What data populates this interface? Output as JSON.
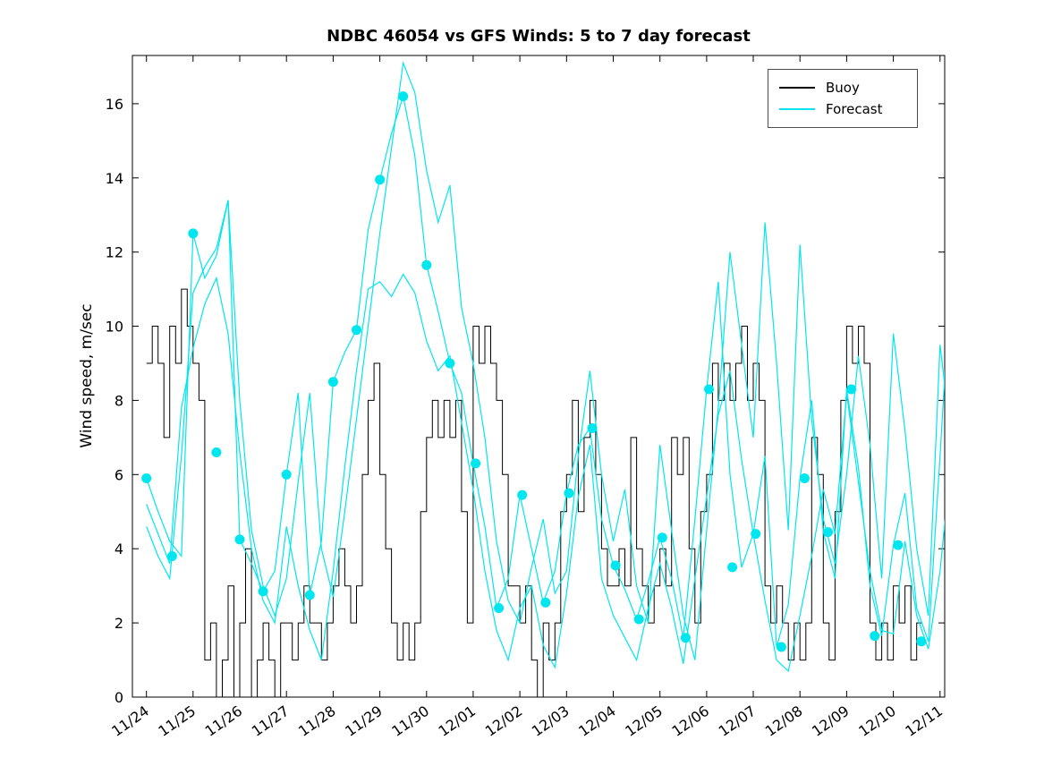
{
  "chart_data": {
    "type": "line",
    "title": "NDBC 46054 vs GFS Winds: 5 to 7 day forecast",
    "xlabel": "",
    "ylabel": "Wind speed, m/sec",
    "x_unit": "days since 11/24",
    "x_tick_labels": [
      "11/24",
      "11/25",
      "11/26",
      "11/27",
      "11/28",
      "11/29",
      "11/30",
      "12/01",
      "12/02",
      "12/03",
      "12/04",
      "12/05",
      "12/06",
      "12/07",
      "12/08",
      "12/09",
      "12/10",
      "12/11"
    ],
    "y_ticks": [
      0,
      2,
      4,
      6,
      8,
      10,
      12,
      14,
      16
    ],
    "xlim": [
      -0.3,
      17.1
    ],
    "ylim": [
      0,
      17.3
    ],
    "grid": false,
    "colors": {
      "buoy": "#000000",
      "forecast": "#00e6ee"
    },
    "legend": {
      "position": "top-right",
      "entries": [
        {
          "label": "Buoy",
          "color": "#000000"
        },
        {
          "label": "Forecast",
          "color": "#00e6ee"
        }
      ]
    },
    "series": [
      {
        "name": "buoy",
        "style": "stairs",
        "color": "#000000",
        "width": 1,
        "x_start": 0,
        "dx": 0.125,
        "values": [
          9,
          10,
          9,
          7,
          10,
          9,
          11,
          10,
          9,
          8,
          1,
          2,
          0,
          1,
          3,
          0,
          2,
          4,
          0,
          1,
          2,
          1,
          0,
          2,
          2,
          1,
          2,
          3,
          2,
          2,
          1,
          2,
          3,
          4,
          3,
          2,
          3,
          6,
          8,
          9,
          6,
          4,
          2,
          1,
          2,
          1,
          2,
          5,
          7,
          8,
          7,
          8,
          7,
          8,
          5,
          2,
          10,
          9,
          10,
          9,
          8,
          6,
          3,
          3,
          2,
          3,
          1,
          0,
          2,
          1,
          2,
          5,
          6,
          8,
          5,
          7,
          8,
          6,
          4,
          3,
          3,
          4,
          3,
          7,
          4,
          3,
          2,
          3,
          4,
          3,
          7,
          6,
          7,
          4,
          2,
          5,
          6,
          9,
          8,
          9,
          8,
          9,
          10,
          8,
          9,
          8,
          3,
          2,
          3,
          2,
          1,
          2,
          1,
          2,
          7,
          6,
          2,
          1,
          5,
          8,
          10,
          9,
          10,
          9,
          2,
          1,
          2,
          1,
          3,
          2,
          3,
          1,
          2,
          2
        ]
      },
      {
        "name": "forecast-1",
        "style": "line",
        "color": "#00e6ee",
        "width": 1.2,
        "x_start": 0,
        "dx": 0.25,
        "values": [
          5.9,
          5.0,
          4.2,
          3.8,
          12.5,
          11.3,
          11.9,
          13.4,
          4.25,
          3.6,
          2.85,
          3.4,
          6.0,
          8.2,
          2.75,
          4.2,
          8.5,
          9.3,
          9.9,
          12.6,
          13.95,
          15.2,
          16.2,
          14.6,
          11.65,
          10.4,
          9.0,
          8.2,
          6.3,
          4.6,
          2.4,
          3.2,
          5.45,
          4.0,
          2.55,
          3.4,
          5.5,
          6.8,
          7.25,
          4.8,
          3.55,
          2.9,
          2.1,
          3.1,
          4.3,
          3.2,
          1.6,
          4.8,
          8.3,
          11.2,
          6.0,
          3.5,
          4.4,
          6.5,
          1.35,
          2.5,
          5.9,
          8.0,
          4.45,
          3.2,
          8.3,
          6.2,
          3.0,
          1.65,
          4.1,
          5.5,
          2.4,
          1.5,
          6.5,
          11.8
        ]
      },
      {
        "name": "forecast-2",
        "style": "line",
        "color": "#00e6ee",
        "width": 1.2,
        "x_start": 0,
        "dx": 0.25,
        "values": [
          4.6,
          3.8,
          3.2,
          6.5,
          10.9,
          11.6,
          12.1,
          13.4,
          8.0,
          4.5,
          3.0,
          2.2,
          3.2,
          5.8,
          8.2,
          4.0,
          2.7,
          5.0,
          7.5,
          10.0,
          12.5,
          14.8,
          17.1,
          16.3,
          14.2,
          12.8,
          13.8,
          10.5,
          9.0,
          7.0,
          4.2,
          2.6,
          2.0,
          3.5,
          4.8,
          2.8,
          3.4,
          6.5,
          8.8,
          6.0,
          4.2,
          5.6,
          3.0,
          2.0,
          6.8,
          4.5,
          2.2,
          1.0,
          4.5,
          7.8,
          12.0,
          9.5,
          7.0,
          12.8,
          9.0,
          4.5,
          12.2,
          7.5,
          4.8,
          3.6,
          6.0,
          9.2,
          6.8,
          3.2,
          9.8,
          7.2,
          4.0,
          2.2,
          9.5,
          6.8
        ]
      },
      {
        "name": "forecast-3",
        "style": "line",
        "color": "#00e6ee",
        "width": 1.2,
        "x_start": 0,
        "dx": 0.25,
        "values": [
          5.2,
          4.4,
          3.6,
          7.8,
          9.4,
          10.6,
          11.3,
          9.8,
          6.6,
          4.0,
          2.6,
          2.0,
          4.6,
          3.0,
          1.8,
          1.0,
          3.4,
          6.2,
          8.8,
          11.0,
          11.2,
          10.8,
          11.4,
          10.9,
          9.6,
          8.8,
          9.2,
          7.4,
          5.6,
          3.4,
          1.8,
          1.0,
          2.4,
          3.0,
          1.4,
          0.8,
          2.8,
          5.4,
          6.8,
          3.2,
          2.2,
          1.6,
          1.0,
          2.4,
          3.6,
          2.4,
          0.9,
          3.2,
          5.4,
          7.6,
          8.8,
          6.4,
          4.4,
          2.6,
          1.0,
          0.7,
          2.2,
          3.8,
          5.6,
          4.4,
          8.2,
          5.8,
          3.4,
          1.8,
          1.7,
          4.2,
          2.2,
          1.3,
          3.4,
          6.6
        ]
      }
    ],
    "markers": {
      "name": "forecast-markers",
      "color": "#00e6ee",
      "radius": 5.5,
      "points": [
        [
          0.0,
          5.9
        ],
        [
          0.55,
          3.8
        ],
        [
          1.0,
          12.5
        ],
        [
          1.5,
          6.6
        ],
        [
          2.0,
          4.25
        ],
        [
          2.5,
          2.85
        ],
        [
          3.0,
          6.0
        ],
        [
          3.5,
          2.75
        ],
        [
          4.0,
          8.5
        ],
        [
          4.5,
          9.9
        ],
        [
          5.0,
          13.95
        ],
        [
          5.5,
          16.2
        ],
        [
          6.0,
          11.65
        ],
        [
          6.5,
          9.0
        ],
        [
          7.05,
          6.3
        ],
        [
          7.55,
          2.4
        ],
        [
          8.05,
          5.45
        ],
        [
          8.55,
          2.55
        ],
        [
          9.05,
          5.5
        ],
        [
          9.55,
          7.25
        ],
        [
          10.05,
          3.55
        ],
        [
          10.55,
          2.1
        ],
        [
          11.05,
          4.3
        ],
        [
          11.55,
          1.6
        ],
        [
          12.05,
          8.3
        ],
        [
          12.55,
          3.5
        ],
        [
          13.05,
          4.4
        ],
        [
          13.6,
          1.35
        ],
        [
          14.1,
          5.9
        ],
        [
          14.6,
          4.45
        ],
        [
          15.1,
          8.3
        ],
        [
          15.6,
          1.65
        ],
        [
          16.1,
          4.1
        ],
        [
          16.6,
          1.5
        ]
      ]
    }
  }
}
